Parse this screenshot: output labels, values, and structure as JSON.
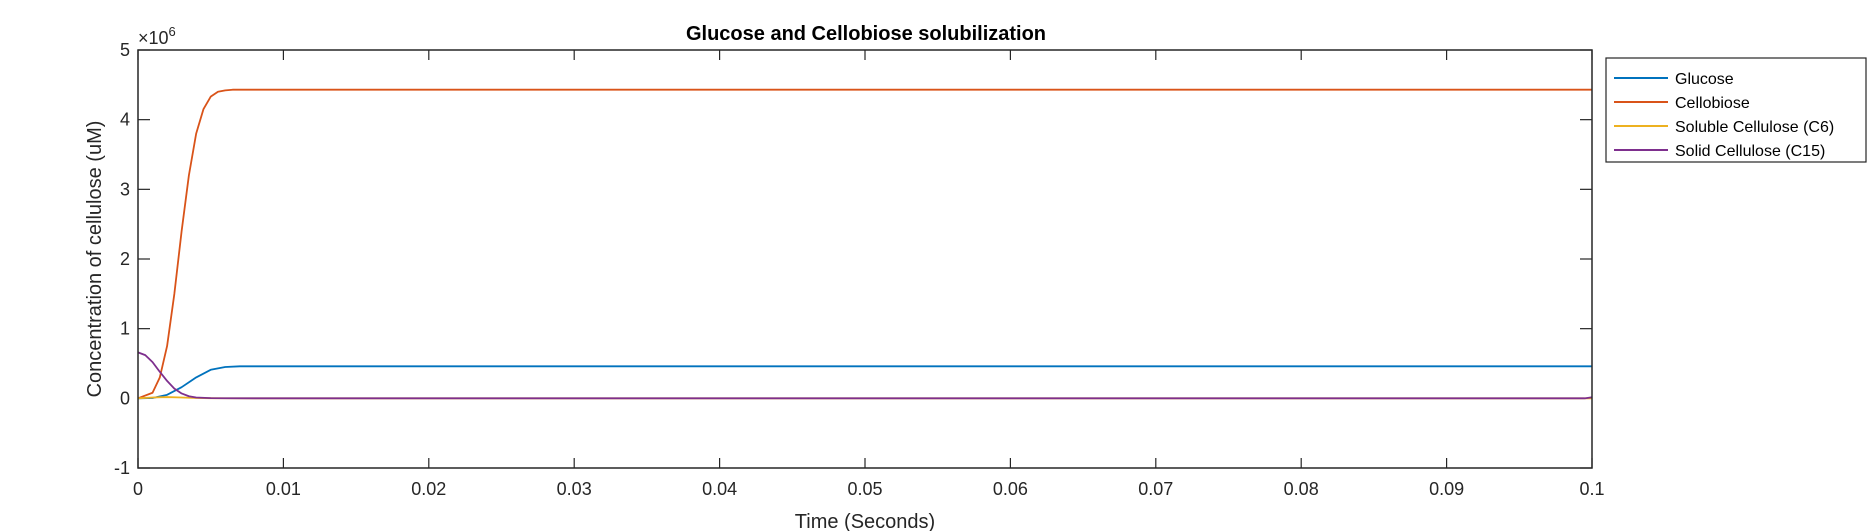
{
  "chart_data": {
    "type": "line",
    "title": "Glucose and Cellobiose solubilization",
    "xlabel": "Time (Seconds)",
    "ylabel": "Concentration of cellulose (uM)",
    "exponent_label_base": "×10",
    "exponent_label_power": "6",
    "xlim": [
      0,
      0.1
    ],
    "ylim": [
      -1,
      5
    ],
    "y_scale": 1000000,
    "x_ticks": [
      "0",
      "0.01",
      "0.02",
      "0.03",
      "0.04",
      "0.05",
      "0.06",
      "0.07",
      "0.08",
      "0.09",
      "0.1"
    ],
    "y_ticks": [
      "-1",
      "0",
      "1",
      "2",
      "3",
      "4",
      "5"
    ],
    "grid": false,
    "legend_position": "outside-top-right",
    "series": [
      {
        "name": "Glucose",
        "color": "#0072BD",
        "x": [
          0,
          0.001,
          0.002,
          0.003,
          0.004,
          0.005,
          0.006,
          0.007,
          0.008,
          0.01,
          0.02,
          0.05,
          0.1
        ],
        "y": [
          0,
          0.005,
          0.05,
          0.16,
          0.3,
          0.41,
          0.45,
          0.46,
          0.46,
          0.46,
          0.46,
          0.46,
          0.46
        ]
      },
      {
        "name": "Cellobiose",
        "color": "#D95319",
        "x": [
          0,
          0.001,
          0.0015,
          0.002,
          0.0025,
          0.003,
          0.0035,
          0.004,
          0.0045,
          0.005,
          0.0055,
          0.006,
          0.0065,
          0.007,
          0.008,
          0.01,
          0.02,
          0.05,
          0.1
        ],
        "y": [
          0,
          0.08,
          0.3,
          0.75,
          1.5,
          2.4,
          3.2,
          3.8,
          4.15,
          4.33,
          4.4,
          4.42,
          4.43,
          4.43,
          4.43,
          4.43,
          4.43,
          4.43,
          4.43
        ]
      },
      {
        "name": "Soluble Cellulose (C6)",
        "color": "#EDB120",
        "x": [
          0,
          0.001,
          0.002,
          0.003,
          0.004,
          0.005,
          0.006,
          0.01,
          0.1
        ],
        "y": [
          0,
          0.012,
          0.018,
          0.012,
          0.005,
          0.002,
          0.001,
          0,
          0
        ]
      },
      {
        "name": "Solid Cellulose (C15)",
        "color": "#7E2F8E",
        "x": [
          0,
          0.0005,
          0.001,
          0.0015,
          0.002,
          0.0025,
          0.003,
          0.0035,
          0.004,
          0.005,
          0.006,
          0.01,
          0.05,
          0.0995,
          0.1
        ],
        "y": [
          0.66,
          0.62,
          0.52,
          0.38,
          0.25,
          0.14,
          0.07,
          0.03,
          0.012,
          0.003,
          0.001,
          0,
          0,
          0,
          0.015
        ]
      }
    ]
  }
}
